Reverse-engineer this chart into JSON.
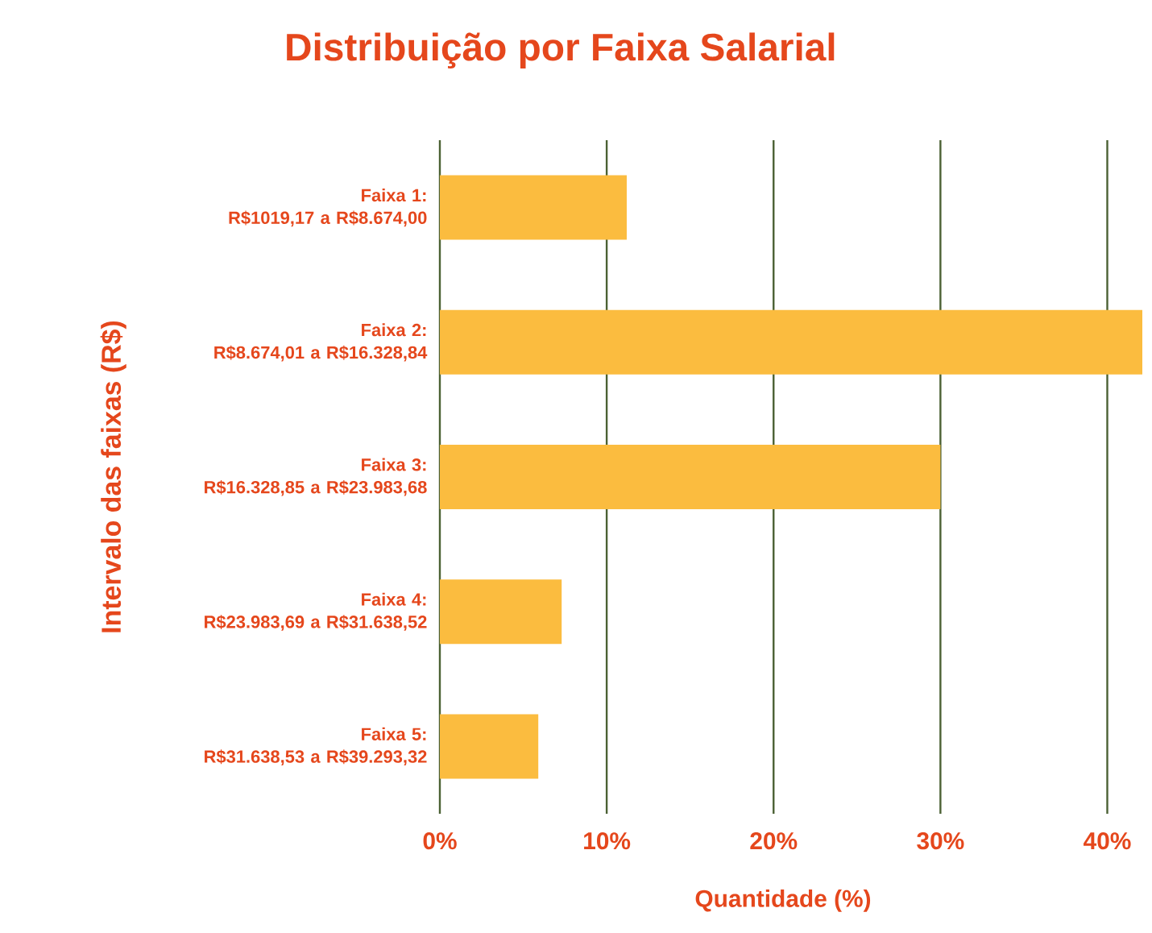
{
  "chart_data": {
    "type": "bar",
    "orientation": "horizontal",
    "title": "Distribuição por Faixa Salarial",
    "xlabel": "Quantidade (%)",
    "ylabel": "Intervalo das faixas (R$)",
    "categories": [
      "Faixa 1: R$1019,17 a R$8.674,00",
      "Faixa 2: R$8.674,01 a R$16.328,84",
      "Faixa 3: R$16.328,85 a R$23.983,68",
      "Faixa 4: R$23.983,69 a R$31.638,52",
      "Faixa 5: R$31.638,53 a R$39.293,32"
    ],
    "values": [
      11.2,
      42.1,
      30.0,
      7.3,
      5.9
    ],
    "color": "#fbbc3f",
    "xlim": [
      0,
      42.1
    ],
    "xticks": [
      {
        "value": 0,
        "label": "0%"
      },
      {
        "value": 10,
        "label": "10%"
      },
      {
        "value": 20,
        "label": "20%"
      },
      {
        "value": 30,
        "label": "30%"
      },
      {
        "value": 40,
        "label": "40%"
      }
    ],
    "grid": "x"
  }
}
